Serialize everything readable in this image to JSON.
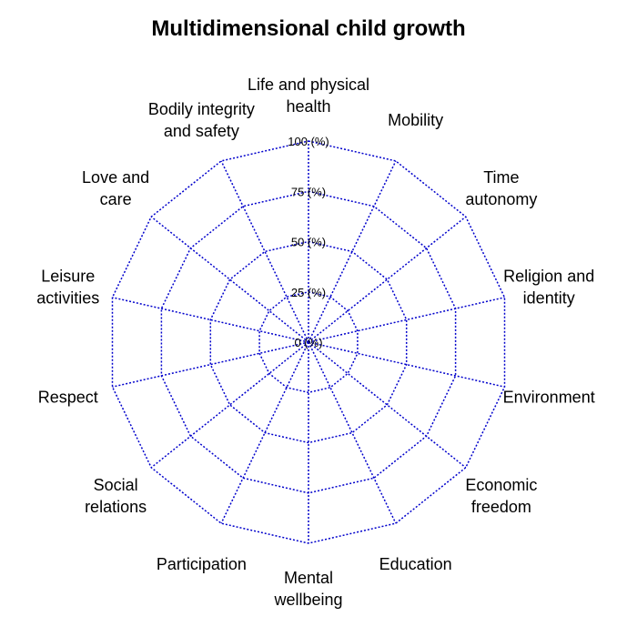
{
  "chart_data": {
    "type": "radar",
    "title": "Multidimensional child growth",
    "axes": [
      [
        "Life and physical",
        "health"
      ],
      [
        "Mobility"
      ],
      [
        "Time",
        "autonomy"
      ],
      [
        "Religion and",
        "identity"
      ],
      [
        "Environment"
      ],
      [
        "Economic",
        "freedom"
      ],
      [
        "Education"
      ],
      [
        "Mental",
        "wellbeing"
      ],
      [
        "Participation"
      ],
      [
        "Social",
        "relations"
      ],
      [
        "Respect"
      ],
      [
        "Leisure",
        "activities"
      ],
      [
        "Love and",
        "care"
      ],
      [
        "Bodily integrity",
        "and safety"
      ]
    ],
    "radial_ticks": [
      "0 (%)",
      "25 (%)",
      "50 (%)",
      "75 (%)",
      "100 (%)"
    ],
    "rlim": [
      0,
      100
    ],
    "grid": true,
    "grid_color": "#0000cc",
    "series": []
  }
}
